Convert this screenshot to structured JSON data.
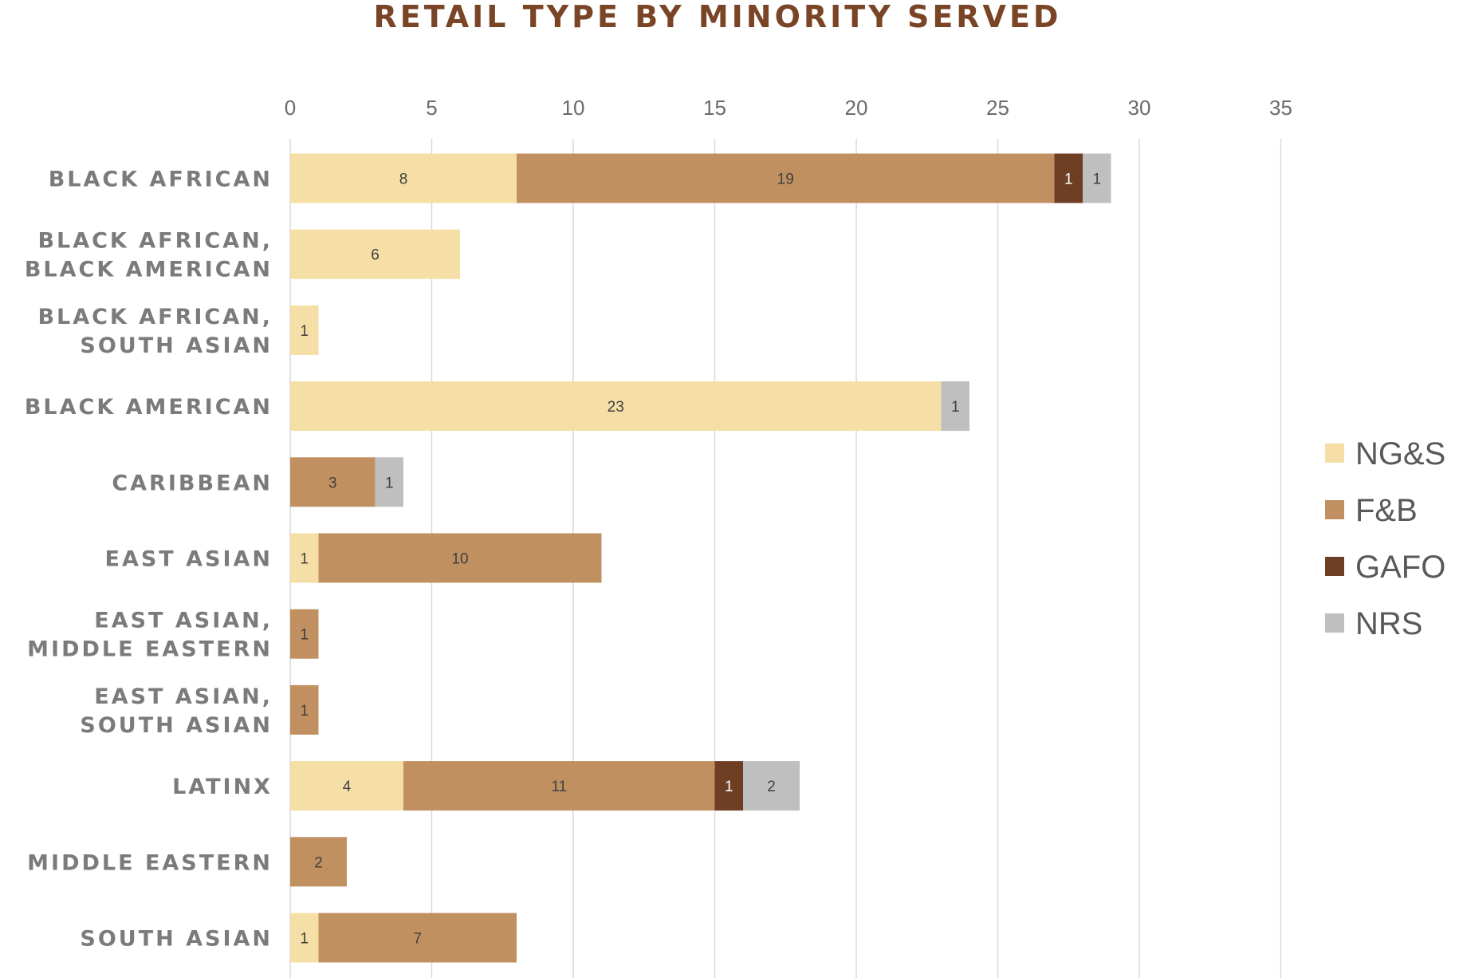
{
  "chart_data": {
    "type": "bar",
    "orientation": "horizontal",
    "stacked": true,
    "title": "RETAIL TYPE BY MINORITY SERVED",
    "xlabel": "",
    "ylabel": "",
    "xlim": [
      0,
      35
    ],
    "x_ticks": [
      0,
      5,
      10,
      15,
      20,
      25,
      30,
      35
    ],
    "x_axis_position": "top",
    "grid": "vertical",
    "legend_position": "right",
    "categories": [
      [
        "BLACK AFRICAN"
      ],
      [
        "BLACK AFRICAN,",
        "BLACK AMERICAN"
      ],
      [
        "BLACK AFRICAN,",
        "SOUTH ASIAN"
      ],
      [
        "BLACK AMERICAN"
      ],
      [
        "CARIBBEAN"
      ],
      [
        "EAST ASIAN"
      ],
      [
        "EAST ASIAN,",
        "MIDDLE EASTERN"
      ],
      [
        "EAST ASIAN,",
        "SOUTH ASIAN"
      ],
      [
        "LATINX"
      ],
      [
        "MIDDLE EASTERN"
      ],
      [
        "SOUTH ASIAN"
      ]
    ],
    "series": [
      {
        "name": "NG&S",
        "color": "#f5dfa6",
        "label_color": "#404040",
        "values": [
          8,
          6,
          1,
          23,
          0,
          1,
          0,
          0,
          4,
          0,
          1
        ]
      },
      {
        "name": "F&B",
        "color": "#c09060",
        "label_color": "#404040",
        "values": [
          19,
          0,
          0,
          0,
          3,
          10,
          1,
          1,
          11,
          2,
          7
        ]
      },
      {
        "name": "GAFO",
        "color": "#6e3f25",
        "label_color": "#ffffff",
        "values": [
          1,
          0,
          0,
          0,
          0,
          0,
          0,
          0,
          1,
          0,
          0
        ]
      },
      {
        "name": "NRS",
        "color": "#bfbfbf",
        "label_color": "#404040",
        "values": [
          1,
          0,
          0,
          1,
          1,
          0,
          0,
          0,
          2,
          0,
          0
        ]
      }
    ]
  }
}
